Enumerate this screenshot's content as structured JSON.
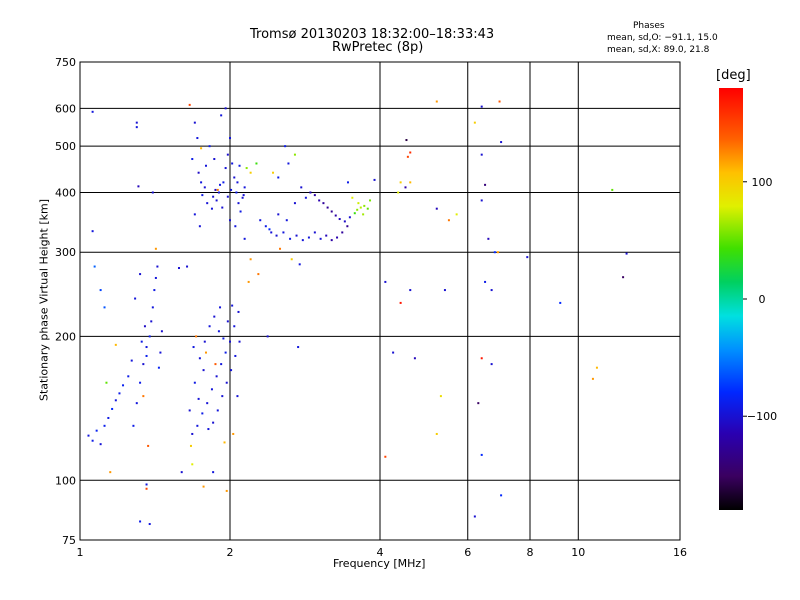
{
  "title": "Tromsø 20130203 18:32:00–18:33:43",
  "subtitle": "RwPretec (8p)",
  "stats": {
    "heading": "Phases",
    "o_mode": "mean, sd,O: −91.1, 15.0",
    "x_mode": "mean, sd,X:  89.0, 21.8"
  },
  "colorbar": {
    "unit_label": "[deg]",
    "ticks": [
      {
        "value": 100,
        "label": "100"
      },
      {
        "value": 0,
        "label": "0"
      },
      {
        "value": -100,
        "label": "−100"
      }
    ],
    "range": [
      -180,
      180
    ]
  },
  "chart_data": {
    "type": "scatter",
    "title": "Tromsø 20130203 18:32:00–18:33:43",
    "subtitle": "RwPretec (8p)",
    "xlabel": "Frequency [MHz]",
    "ylabel": "Stationary phase Virtual Height [km]",
    "xscale": "log",
    "yscale": "log",
    "xlim": [
      1,
      16
    ],
    "ylim": [
      75,
      750
    ],
    "x_ticks": [
      {
        "v": 1,
        "label": "1"
      },
      {
        "v": 2,
        "label": "2"
      },
      {
        "v": 4,
        "label": "4"
      },
      {
        "v": 6,
        "label": "6"
      },
      {
        "v": 8,
        "label": "8"
      },
      {
        "v": 10,
        "label": "10"
      },
      {
        "v": 16,
        "label": "16"
      }
    ],
    "y_ticks": [
      {
        "v": 75,
        "label": "75"
      },
      {
        "v": 100,
        "label": "100"
      },
      {
        "v": 200,
        "label": "200"
      },
      {
        "v": 300,
        "label": "300"
      },
      {
        "v": 400,
        "label": "400"
      },
      {
        "v": 500,
        "label": "500"
      },
      {
        "v": 600,
        "label": "600"
      },
      {
        "v": 750,
        "label": "750"
      }
    ],
    "grid": true,
    "color_by": "phase [deg]",
    "points": [
      {
        "x": 1.04,
        "y": 124,
        "p": -95
      },
      {
        "x": 1.06,
        "y": 121,
        "p": -90
      },
      {
        "x": 1.08,
        "y": 127,
        "p": -85
      },
      {
        "x": 1.1,
        "y": 119,
        "p": -98
      },
      {
        "x": 1.12,
        "y": 130,
        "p": -88
      },
      {
        "x": 1.14,
        "y": 135,
        "p": -92
      },
      {
        "x": 1.16,
        "y": 141,
        "p": -80
      },
      {
        "x": 1.18,
        "y": 147,
        "p": -95
      },
      {
        "x": 1.2,
        "y": 152,
        "p": -90
      },
      {
        "x": 1.22,
        "y": 158,
        "p": -86
      },
      {
        "x": 1.1,
        "y": 250,
        "p": -70
      },
      {
        "x": 1.07,
        "y": 280,
        "p": -60
      },
      {
        "x": 1.12,
        "y": 230,
        "p": -65
      },
      {
        "x": 1.13,
        "y": 160,
        "p": 50
      },
      {
        "x": 1.18,
        "y": 192,
        "p": 110
      },
      {
        "x": 1.15,
        "y": 104,
        "p": 120
      },
      {
        "x": 1.06,
        "y": 590,
        "p": -95
      },
      {
        "x": 1.06,
        "y": 332,
        "p": -95
      },
      {
        "x": 1.3,
        "y": 560,
        "p": -100
      },
      {
        "x": 1.3,
        "y": 548,
        "p": -95
      },
      {
        "x": 1.31,
        "y": 412,
        "p": -110
      },
      {
        "x": 1.4,
        "y": 400,
        "p": -100
      },
      {
        "x": 1.42,
        "y": 305,
        "p": 120
      },
      {
        "x": 1.28,
        "y": 130,
        "p": -90
      },
      {
        "x": 1.3,
        "y": 145,
        "p": -95
      },
      {
        "x": 1.32,
        "y": 160,
        "p": -90
      },
      {
        "x": 1.34,
        "y": 175,
        "p": -100
      },
      {
        "x": 1.36,
        "y": 190,
        "p": -95
      },
      {
        "x": 1.38,
        "y": 200,
        "p": -90
      },
      {
        "x": 1.39,
        "y": 215,
        "p": -100
      },
      {
        "x": 1.4,
        "y": 230,
        "p": -95
      },
      {
        "x": 1.41,
        "y": 250,
        "p": -92
      },
      {
        "x": 1.42,
        "y": 265,
        "p": -96
      },
      {
        "x": 1.43,
        "y": 280,
        "p": -100
      },
      {
        "x": 1.36,
        "y": 182,
        "p": -88
      },
      {
        "x": 1.35,
        "y": 210,
        "p": -105
      },
      {
        "x": 1.45,
        "y": 185,
        "p": -98
      },
      {
        "x": 1.44,
        "y": 172,
        "p": -85
      },
      {
        "x": 1.33,
        "y": 195,
        "p": -92
      },
      {
        "x": 1.46,
        "y": 205,
        "p": -102
      },
      {
        "x": 1.29,
        "y": 240,
        "p": -96
      },
      {
        "x": 1.32,
        "y": 270,
        "p": -100
      },
      {
        "x": 1.34,
        "y": 150,
        "p": 130
      },
      {
        "x": 1.37,
        "y": 118,
        "p": 140
      },
      {
        "x": 1.36,
        "y": 96,
        "p": 150
      },
      {
        "x": 1.32,
        "y": 82,
        "p": -90
      },
      {
        "x": 1.38,
        "y": 81,
        "p": -95
      },
      {
        "x": 1.36,
        "y": 98,
        "p": -95
      },
      {
        "x": 1.25,
        "y": 165,
        "p": -90
      },
      {
        "x": 1.27,
        "y": 178,
        "p": -96
      },
      {
        "x": 1.66,
        "y": 610,
        "p": 150
      },
      {
        "x": 1.7,
        "y": 560,
        "p": -100
      },
      {
        "x": 1.72,
        "y": 520,
        "p": -95
      },
      {
        "x": 1.68,
        "y": 470,
        "p": -90
      },
      {
        "x": 1.73,
        "y": 440,
        "p": -105
      },
      {
        "x": 1.75,
        "y": 420,
        "p": -95
      },
      {
        "x": 1.78,
        "y": 410,
        "p": -100
      },
      {
        "x": 1.76,
        "y": 395,
        "p": -92
      },
      {
        "x": 1.8,
        "y": 380,
        "p": -98
      },
      {
        "x": 1.84,
        "y": 370,
        "p": -96
      },
      {
        "x": 1.88,
        "y": 385,
        "p": -100
      },
      {
        "x": 1.9,
        "y": 400,
        "p": -95
      },
      {
        "x": 1.94,
        "y": 420,
        "p": -90
      },
      {
        "x": 1.96,
        "y": 450,
        "p": -98
      },
      {
        "x": 1.98,
        "y": 480,
        "p": -102
      },
      {
        "x": 2.0,
        "y": 520,
        "p": -96
      },
      {
        "x": 2.02,
        "y": 460,
        "p": -94
      },
      {
        "x": 2.04,
        "y": 430,
        "p": -100
      },
      {
        "x": 2.06,
        "y": 400,
        "p": -90
      },
      {
        "x": 2.08,
        "y": 380,
        "p": -98
      },
      {
        "x": 2.1,
        "y": 365,
        "p": -92
      },
      {
        "x": 2.12,
        "y": 390,
        "p": -100
      },
      {
        "x": 2.14,
        "y": 410,
        "p": -96
      },
      {
        "x": 1.86,
        "y": 470,
        "p": -100
      },
      {
        "x": 1.92,
        "y": 580,
        "p": -95
      },
      {
        "x": 1.96,
        "y": 600,
        "p": -100
      },
      {
        "x": 1.82,
        "y": 500,
        "p": -90
      },
      {
        "x": 1.7,
        "y": 360,
        "p": -96
      },
      {
        "x": 1.74,
        "y": 340,
        "p": -98
      },
      {
        "x": 2.0,
        "y": 350,
        "p": -100
      },
      {
        "x": 2.05,
        "y": 340,
        "p": -95
      },
      {
        "x": 2.09,
        "y": 455,
        "p": -92
      },
      {
        "x": 2.13,
        "y": 395,
        "p": -100
      },
      {
        "x": 1.87,
        "y": 405,
        "p": -105
      },
      {
        "x": 1.93,
        "y": 372,
        "p": -100
      },
      {
        "x": 1.79,
        "y": 455,
        "p": -96
      },
      {
        "x": 2.01,
        "y": 405,
        "p": -95
      },
      {
        "x": 2.07,
        "y": 420,
        "p": -97
      },
      {
        "x": 1.98,
        "y": 392,
        "p": -99
      },
      {
        "x": 1.91,
        "y": 415,
        "p": -93
      },
      {
        "x": 1.85,
        "y": 392,
        "p": -100
      },
      {
        "x": 2.16,
        "y": 450,
        "p": 60
      },
      {
        "x": 2.2,
        "y": 440,
        "p": 100
      },
      {
        "x": 2.26,
        "y": 460,
        "p": 40
      },
      {
        "x": 1.89,
        "y": 405,
        "p": 130
      },
      {
        "x": 1.75,
        "y": 495,
        "p": 110
      },
      {
        "x": 1.68,
        "y": 125,
        "p": -100
      },
      {
        "x": 1.72,
        "y": 130,
        "p": -95
      },
      {
        "x": 1.76,
        "y": 138,
        "p": -90
      },
      {
        "x": 1.8,
        "y": 145,
        "p": -98
      },
      {
        "x": 1.84,
        "y": 155,
        "p": -96
      },
      {
        "x": 1.88,
        "y": 165,
        "p": -100
      },
      {
        "x": 1.92,
        "y": 175,
        "p": -95
      },
      {
        "x": 1.96,
        "y": 185,
        "p": -90
      },
      {
        "x": 2.0,
        "y": 195,
        "p": -100
      },
      {
        "x": 2.04,
        "y": 210,
        "p": -96
      },
      {
        "x": 2.08,
        "y": 225,
        "p": -100
      },
      {
        "x": 1.7,
        "y": 160,
        "p": -92
      },
      {
        "x": 1.74,
        "y": 180,
        "p": -98
      },
      {
        "x": 1.78,
        "y": 195,
        "p": -100
      },
      {
        "x": 1.82,
        "y": 210,
        "p": -96
      },
      {
        "x": 1.86,
        "y": 220,
        "p": -100
      },
      {
        "x": 1.9,
        "y": 205,
        "p": -95
      },
      {
        "x": 1.94,
        "y": 198,
        "p": -92
      },
      {
        "x": 1.98,
        "y": 215,
        "p": -100
      },
      {
        "x": 2.02,
        "y": 232,
        "p": -96
      },
      {
        "x": 1.66,
        "y": 140,
        "p": -100
      },
      {
        "x": 1.69,
        "y": 190,
        "p": -94
      },
      {
        "x": 1.73,
        "y": 148,
        "p": -98
      },
      {
        "x": 1.77,
        "y": 170,
        "p": -100
      },
      {
        "x": 1.81,
        "y": 128,
        "p": -96
      },
      {
        "x": 1.85,
        "y": 132,
        "p": -100
      },
      {
        "x": 1.89,
        "y": 140,
        "p": -95
      },
      {
        "x": 1.93,
        "y": 150,
        "p": -98
      },
      {
        "x": 1.97,
        "y": 160,
        "p": -100
      },
      {
        "x": 2.01,
        "y": 170,
        "p": -96
      },
      {
        "x": 2.05,
        "y": 182,
        "p": -95
      },
      {
        "x": 2.09,
        "y": 195,
        "p": -100
      },
      {
        "x": 1.71,
        "y": 200,
        "p": 130
      },
      {
        "x": 1.79,
        "y": 185,
        "p": 120
      },
      {
        "x": 1.87,
        "y": 175,
        "p": 140
      },
      {
        "x": 1.95,
        "y": 120,
        "p": 110
      },
      {
        "x": 2.03,
        "y": 125,
        "p": 120
      },
      {
        "x": 1.67,
        "y": 118,
        "p": 100
      },
      {
        "x": 2.07,
        "y": 150,
        "p": -98
      },
      {
        "x": 1.91,
        "y": 230,
        "p": -96
      },
      {
        "x": 1.6,
        "y": 104,
        "p": -100
      },
      {
        "x": 1.68,
        "y": 108,
        "p": 80
      },
      {
        "x": 1.77,
        "y": 97,
        "p": 120
      },
      {
        "x": 1.85,
        "y": 104,
        "p": -95
      },
      {
        "x": 1.97,
        "y": 95,
        "p": 120
      },
      {
        "x": 1.58,
        "y": 278,
        "p": -100
      },
      {
        "x": 1.64,
        "y": 280,
        "p": -100
      },
      {
        "x": 2.3,
        "y": 350,
        "p": -95
      },
      {
        "x": 2.36,
        "y": 340,
        "p": -90
      },
      {
        "x": 2.42,
        "y": 330,
        "p": -98
      },
      {
        "x": 2.48,
        "y": 325,
        "p": -100
      },
      {
        "x": 2.56,
        "y": 330,
        "p": -95
      },
      {
        "x": 2.64,
        "y": 320,
        "p": -92
      },
      {
        "x": 2.72,
        "y": 325,
        "p": -100
      },
      {
        "x": 2.8,
        "y": 318,
        "p": -96
      },
      {
        "x": 2.88,
        "y": 322,
        "p": -95
      },
      {
        "x": 2.96,
        "y": 330,
        "p": -100
      },
      {
        "x": 3.04,
        "y": 320,
        "p": -98
      },
      {
        "x": 3.12,
        "y": 325,
        "p": -110
      },
      {
        "x": 3.2,
        "y": 318,
        "p": -120
      },
      {
        "x": 3.28,
        "y": 322,
        "p": -115
      },
      {
        "x": 3.36,
        "y": 330,
        "p": -125
      },
      {
        "x": 3.44,
        "y": 340,
        "p": -130
      },
      {
        "x": 2.5,
        "y": 360,
        "p": -100
      },
      {
        "x": 2.6,
        "y": 350,
        "p": -95
      },
      {
        "x": 2.4,
        "y": 335,
        "p": -80
      },
      {
        "x": 2.58,
        "y": 500,
        "p": -90
      },
      {
        "x": 2.7,
        "y": 480,
        "p": 60
      },
      {
        "x": 2.62,
        "y": 460,
        "p": -95
      },
      {
        "x": 2.5,
        "y": 430,
        "p": -90
      },
      {
        "x": 2.44,
        "y": 440,
        "p": 100
      },
      {
        "x": 2.78,
        "y": 410,
        "p": -100
      },
      {
        "x": 2.84,
        "y": 390,
        "p": -95
      },
      {
        "x": 2.9,
        "y": 400,
        "p": -110
      },
      {
        "x": 2.96,
        "y": 395,
        "p": -120
      },
      {
        "x": 3.02,
        "y": 385,
        "p": -115
      },
      {
        "x": 3.08,
        "y": 380,
        "p": -125
      },
      {
        "x": 3.14,
        "y": 372,
        "p": -128
      },
      {
        "x": 3.2,
        "y": 365,
        "p": -130
      },
      {
        "x": 3.26,
        "y": 358,
        "p": -120
      },
      {
        "x": 3.32,
        "y": 352,
        "p": -110
      },
      {
        "x": 3.4,
        "y": 348,
        "p": -105
      },
      {
        "x": 3.48,
        "y": 355,
        "p": -100
      },
      {
        "x": 3.56,
        "y": 362,
        "p": 40
      },
      {
        "x": 3.6,
        "y": 368,
        "p": 60
      },
      {
        "x": 3.66,
        "y": 372,
        "p": 70
      },
      {
        "x": 3.72,
        "y": 375,
        "p": 60
      },
      {
        "x": 3.78,
        "y": 370,
        "p": 50
      },
      {
        "x": 3.62,
        "y": 380,
        "p": 75
      },
      {
        "x": 3.7,
        "y": 360,
        "p": 65
      },
      {
        "x": 3.82,
        "y": 385,
        "p": 55
      },
      {
        "x": 3.52,
        "y": 390,
        "p": 80
      },
      {
        "x": 3.45,
        "y": 420,
        "p": -90
      },
      {
        "x": 3.9,
        "y": 425,
        "p": -100
      },
      {
        "x": 2.7,
        "y": 380,
        "p": -100
      },
      {
        "x": 2.2,
        "y": 290,
        "p": 120
      },
      {
        "x": 2.28,
        "y": 270,
        "p": 130
      },
      {
        "x": 2.14,
        "y": 320,
        "p": -95
      },
      {
        "x": 2.18,
        "y": 260,
        "p": 120
      },
      {
        "x": 2.38,
        "y": 200,
        "p": -100
      },
      {
        "x": 2.74,
        "y": 190,
        "p": -95
      },
      {
        "x": 2.76,
        "y": 283,
        "p": -95
      },
      {
        "x": 2.52,
        "y": 305,
        "p": 130
      },
      {
        "x": 2.66,
        "y": 290,
        "p": 100
      },
      {
        "x": 4.1,
        "y": 112,
        "p": 150
      },
      {
        "x": 4.1,
        "y": 260,
        "p": -100
      },
      {
        "x": 4.25,
        "y": 185,
        "p": -100
      },
      {
        "x": 4.35,
        "y": 400,
        "p": 80
      },
      {
        "x": 4.4,
        "y": 420,
        "p": 100
      },
      {
        "x": 4.5,
        "y": 410,
        "p": -120
      },
      {
        "x": 4.55,
        "y": 475,
        "p": 150
      },
      {
        "x": 4.6,
        "y": 485,
        "p": 160
      },
      {
        "x": 4.52,
        "y": 515,
        "p": -160
      },
      {
        "x": 4.6,
        "y": 420,
        "p": 110
      },
      {
        "x": 4.4,
        "y": 235,
        "p": 170
      },
      {
        "x": 4.6,
        "y": 250,
        "p": -100
      },
      {
        "x": 4.7,
        "y": 180,
        "p": -110
      },
      {
        "x": 5.2,
        "y": 620,
        "p": 120
      },
      {
        "x": 5.2,
        "y": 370,
        "p": -110
      },
      {
        "x": 5.3,
        "y": 150,
        "p": 90
      },
      {
        "x": 5.2,
        "y": 125,
        "p": 100
      },
      {
        "x": 5.5,
        "y": 350,
        "p": 130
      },
      {
        "x": 5.7,
        "y": 360,
        "p": 80
      },
      {
        "x": 5.4,
        "y": 250,
        "p": -100
      },
      {
        "x": 6.2,
        "y": 560,
        "p": 100
      },
      {
        "x": 6.4,
        "y": 605,
        "p": -100
      },
      {
        "x": 6.4,
        "y": 480,
        "p": -100
      },
      {
        "x": 6.5,
        "y": 415,
        "p": -140
      },
      {
        "x": 6.4,
        "y": 385,
        "p": -100
      },
      {
        "x": 6.6,
        "y": 320,
        "p": -110
      },
      {
        "x": 6.8,
        "y": 300,
        "p": -80
      },
      {
        "x": 6.5,
        "y": 260,
        "p": -90
      },
      {
        "x": 6.7,
        "y": 250,
        "p": -100
      },
      {
        "x": 6.4,
        "y": 180,
        "p": 170
      },
      {
        "x": 6.3,
        "y": 145,
        "p": -150
      },
      {
        "x": 6.4,
        "y": 113,
        "p": -80
      },
      {
        "x": 6.2,
        "y": 84,
        "p": -100
      },
      {
        "x": 6.7,
        "y": 175,
        "p": -100
      },
      {
        "x": 6.95,
        "y": 620,
        "p": 140
      },
      {
        "x": 7.0,
        "y": 510,
        "p": -100
      },
      {
        "x": 7.0,
        "y": 93,
        "p": -80
      },
      {
        "x": 6.9,
        "y": 300,
        "p": 120
      },
      {
        "x": 7.9,
        "y": 293,
        "p": -100
      },
      {
        "x": 9.2,
        "y": 235,
        "p": -80
      },
      {
        "x": 10.7,
        "y": 163,
        "p": 120
      },
      {
        "x": 10.9,
        "y": 172,
        "p": 110
      },
      {
        "x": 11.7,
        "y": 405,
        "p": 50
      },
      {
        "x": 12.3,
        "y": 266,
        "p": -150
      },
      {
        "x": 12.5,
        "y": 298,
        "p": -100
      }
    ]
  }
}
